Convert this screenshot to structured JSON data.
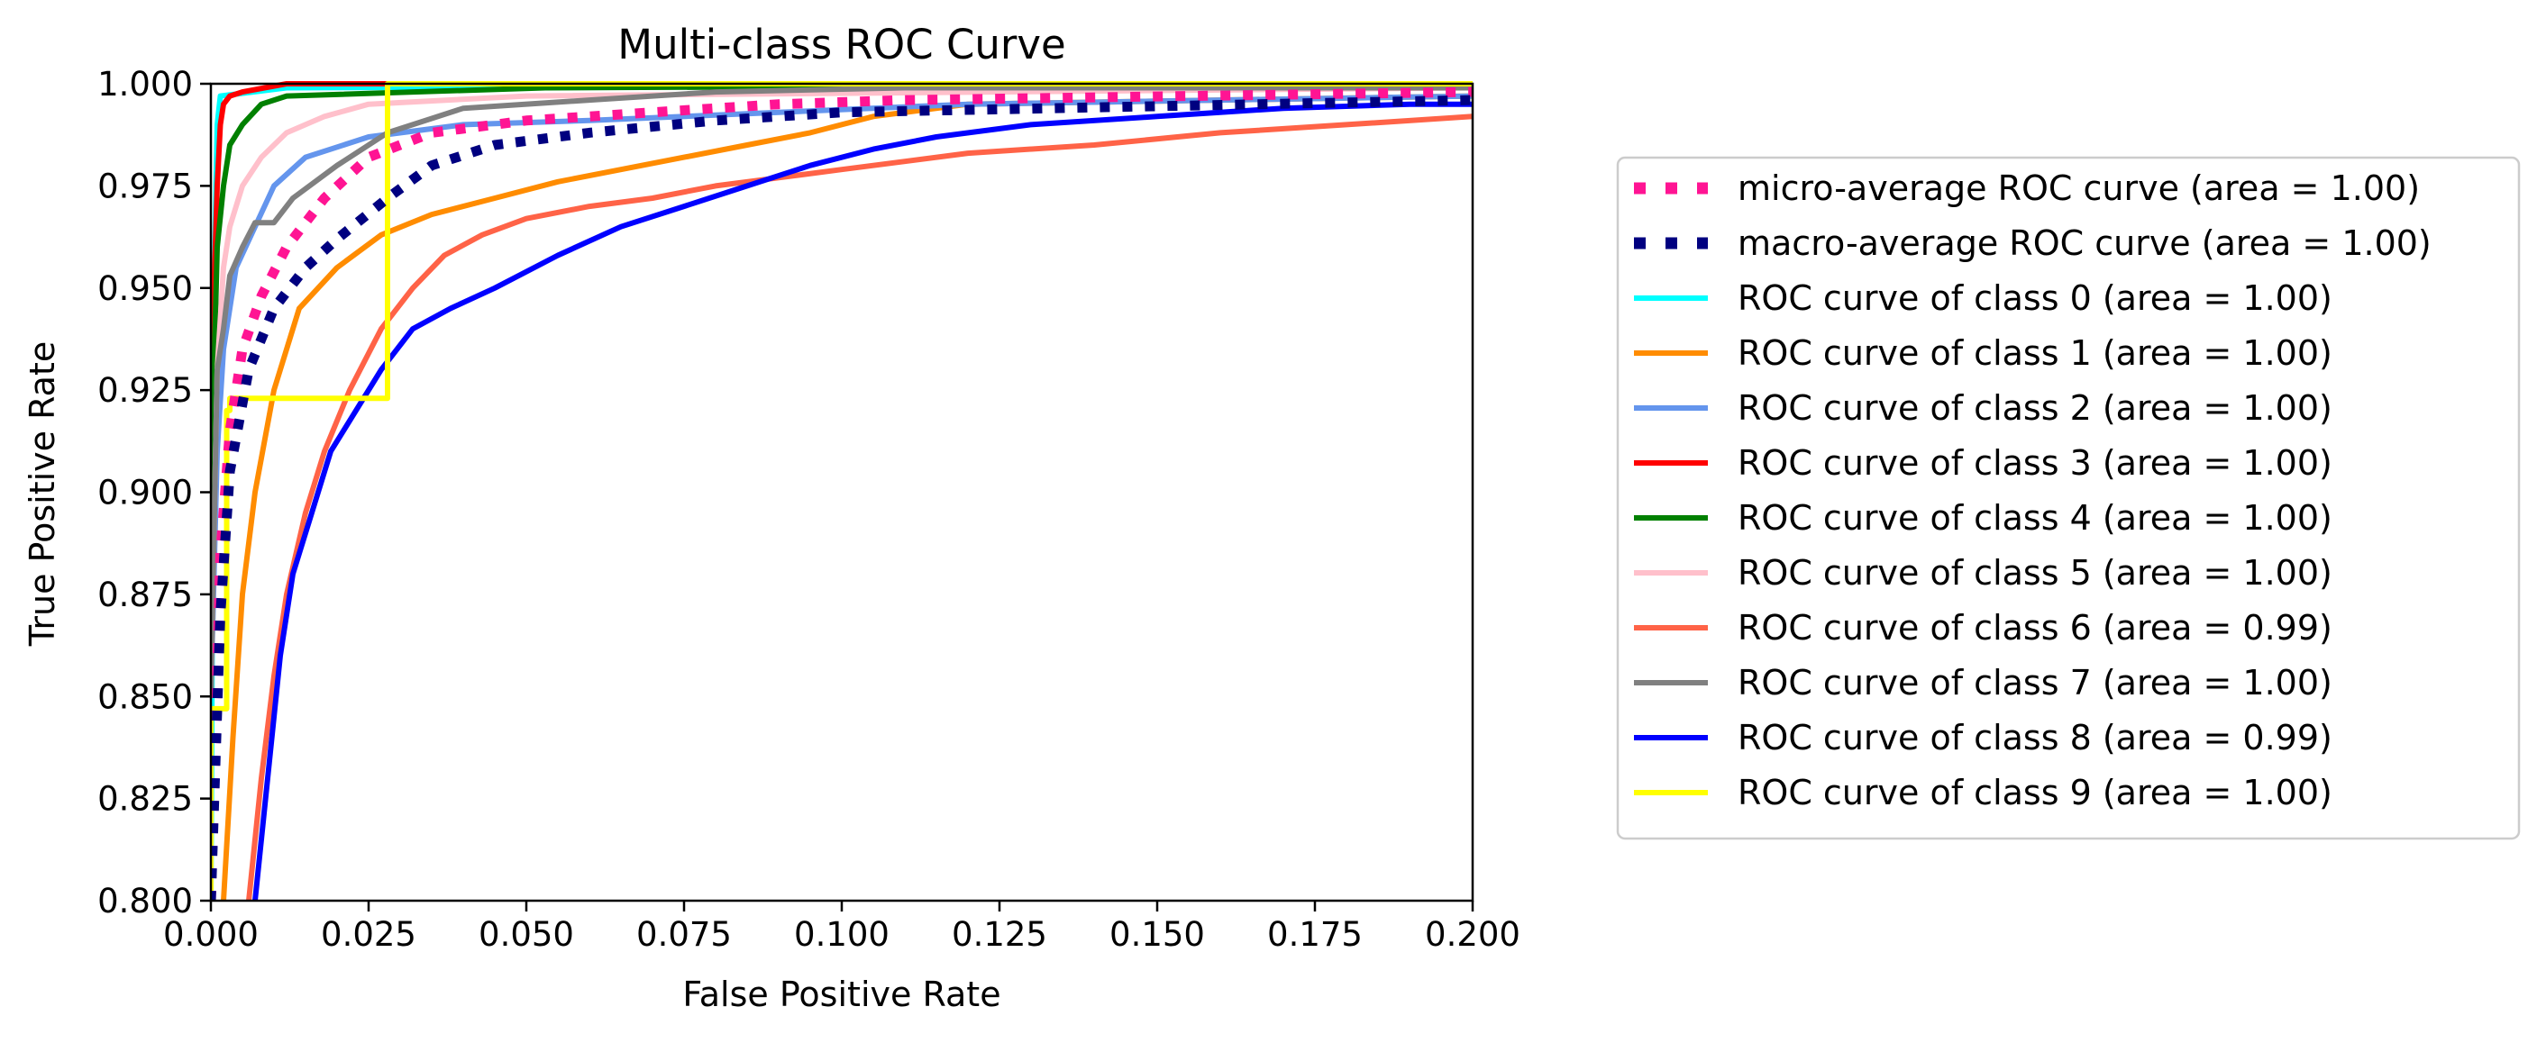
{
  "chart_data": {
    "type": "line",
    "title": "Multi-class ROC Curve",
    "xlabel": "False Positive Rate",
    "ylabel": "True Positive Rate",
    "xlim": [
      0.0,
      0.2
    ],
    "ylim": [
      0.8,
      1.0
    ],
    "x_ticks": [
      "0.000",
      "0.025",
      "0.050",
      "0.075",
      "0.100",
      "0.125",
      "0.150",
      "0.175",
      "0.200"
    ],
    "y_ticks": [
      "0.800",
      "0.825",
      "0.850",
      "0.875",
      "0.900",
      "0.925",
      "0.950",
      "0.975",
      "1.000"
    ],
    "grid": false,
    "legend_position": "right, outside plot",
    "series": [
      {
        "name": "micro-average ROC curve (area = 1.00)",
        "color": "#ff1493",
        "style": "dotted",
        "x": [
          0.0,
          0.0015,
          0.003,
          0.005,
          0.008,
          0.012,
          0.018,
          0.025,
          0.035,
          0.05,
          0.07,
          0.09,
          0.11,
          0.2
        ],
        "y": [
          0.8,
          0.885,
          0.915,
          0.935,
          0.948,
          0.96,
          0.972,
          0.982,
          0.988,
          0.991,
          0.993,
          0.995,
          0.996,
          0.998
        ]
      },
      {
        "name": "macro-average ROC curve (area = 1.00)",
        "color": "#000080",
        "style": "dotted",
        "x": [
          0.0,
          0.0015,
          0.003,
          0.006,
          0.01,
          0.015,
          0.02,
          0.028,
          0.035,
          0.045,
          0.06,
          0.08,
          0.1,
          0.2
        ],
        "y": [
          0.8,
          0.87,
          0.905,
          0.93,
          0.945,
          0.955,
          0.962,
          0.972,
          0.98,
          0.985,
          0.988,
          0.991,
          0.993,
          0.996
        ]
      },
      {
        "name": "ROC curve of class 0 (area = 1.00)",
        "color": "#00ffff",
        "style": "solid",
        "x": [
          0.0,
          0.0005,
          0.001,
          0.0015,
          0.012,
          0.2
        ],
        "y": [
          0.8,
          0.95,
          0.99,
          0.997,
          0.999,
          1.0
        ]
      },
      {
        "name": "ROC curve of class 1 (area = 1.00)",
        "color": "#ff8c00",
        "style": "solid",
        "x": [
          0.002,
          0.0035,
          0.005,
          0.007,
          0.01,
          0.014,
          0.02,
          0.027,
          0.035,
          0.045,
          0.055,
          0.065,
          0.075,
          0.085,
          0.095,
          0.105,
          0.12,
          0.2
        ],
        "y": [
          0.8,
          0.84,
          0.875,
          0.9,
          0.925,
          0.945,
          0.955,
          0.963,
          0.968,
          0.972,
          0.976,
          0.979,
          0.982,
          0.985,
          0.988,
          0.992,
          0.995,
          0.997
        ]
      },
      {
        "name": "ROC curve of class 2 (area = 1.00)",
        "color": "#6495ed",
        "style": "solid",
        "x": [
          0.0,
          0.001,
          0.002,
          0.004,
          0.007,
          0.01,
          0.015,
          0.025,
          0.04,
          0.06,
          0.09,
          0.12,
          0.2
        ],
        "y": [
          0.85,
          0.91,
          0.935,
          0.955,
          0.965,
          0.975,
          0.982,
          0.987,
          0.99,
          0.991,
          0.993,
          0.995,
          0.997
        ]
      },
      {
        "name": "ROC curve of class 3 (area = 1.00)",
        "color": "#ff0000",
        "style": "solid",
        "x": [
          0.0,
          0.0005,
          0.001,
          0.0015,
          0.002,
          0.003,
          0.005,
          0.012,
          0.2
        ],
        "y": [
          0.85,
          0.95,
          0.975,
          0.99,
          0.995,
          0.997,
          0.998,
          1.0,
          1.0
        ]
      },
      {
        "name": "ROC curve of class 4 (area = 1.00)",
        "color": "#008000",
        "style": "solid",
        "x": [
          0.0,
          0.0005,
          0.001,
          0.002,
          0.003,
          0.005,
          0.008,
          0.012,
          0.053,
          0.2
        ],
        "y": [
          0.85,
          0.93,
          0.96,
          0.975,
          0.985,
          0.99,
          0.995,
          0.997,
          0.999,
          1.0
        ]
      },
      {
        "name": "ROC curve of class 5 (area = 1.00)",
        "color": "#ffc0cb",
        "style": "solid",
        "x": [
          0.0,
          0.001,
          0.002,
          0.003,
          0.005,
          0.008,
          0.012,
          0.018,
          0.025,
          0.05,
          0.2
        ],
        "y": [
          0.85,
          0.93,
          0.955,
          0.965,
          0.975,
          0.982,
          0.988,
          0.992,
          0.995,
          0.997,
          0.999
        ]
      },
      {
        "name": "ROC curve of class 6 (area = 0.99)",
        "color": "#ff6347",
        "style": "solid",
        "x": [
          0.006,
          0.008,
          0.01,
          0.012,
          0.015,
          0.018,
          0.022,
          0.027,
          0.032,
          0.037,
          0.043,
          0.05,
          0.06,
          0.07,
          0.08,
          0.09,
          0.1,
          0.11,
          0.12,
          0.14,
          0.16,
          0.18,
          0.2
        ],
        "y": [
          0.8,
          0.83,
          0.855,
          0.875,
          0.895,
          0.91,
          0.925,
          0.94,
          0.95,
          0.958,
          0.963,
          0.967,
          0.97,
          0.972,
          0.975,
          0.977,
          0.979,
          0.981,
          0.983,
          0.985,
          0.988,
          0.99,
          0.992
        ]
      },
      {
        "name": "ROC curve of class 7 (area = 1.00)",
        "color": "#808080",
        "style": "solid",
        "x": [
          0.0,
          0.001,
          0.002,
          0.003,
          0.005,
          0.007,
          0.01,
          0.013,
          0.02,
          0.028,
          0.04,
          0.06,
          0.08,
          0.11,
          0.2
        ],
        "y": [
          0.85,
          0.93,
          0.94,
          0.953,
          0.96,
          0.966,
          0.966,
          0.972,
          0.98,
          0.988,
          0.994,
          0.996,
          0.998,
          0.999,
          0.999
        ]
      },
      {
        "name": "ROC curve of class 8 (area = 0.99)",
        "color": "#0000ff",
        "style": "solid",
        "x": [
          0.007,
          0.009,
          0.011,
          0.013,
          0.016,
          0.019,
          0.023,
          0.027,
          0.032,
          0.038,
          0.045,
          0.055,
          0.065,
          0.075,
          0.085,
          0.095,
          0.105,
          0.115,
          0.13,
          0.15,
          0.17,
          0.19,
          0.2
        ],
        "y": [
          0.8,
          0.83,
          0.86,
          0.88,
          0.895,
          0.91,
          0.92,
          0.93,
          0.94,
          0.945,
          0.95,
          0.958,
          0.965,
          0.97,
          0.975,
          0.98,
          0.984,
          0.987,
          0.99,
          0.992,
          0.994,
          0.995,
          0.995
        ]
      },
      {
        "name": "ROC curve of class 9 (area = 1.00)",
        "color": "#ffff00",
        "style": "solid",
        "x": [
          0.0,
          0.0,
          0.0025,
          0.0025,
          0.003,
          0.003,
          0.028,
          0.028,
          0.2
        ],
        "y": [
          0.8,
          0.847,
          0.847,
          0.92,
          0.92,
          0.923,
          0.923,
          1.0,
          1.0
        ]
      }
    ]
  }
}
